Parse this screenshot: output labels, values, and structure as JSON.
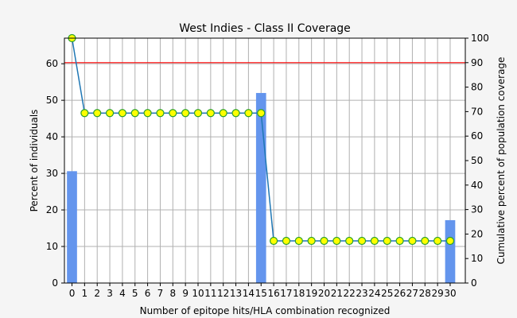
{
  "chart_data": {
    "type": "bar+line",
    "title": "West Indies - Class II Coverage",
    "xlabel": "Number of epitope hits/HLA combination recognized",
    "ylabel": "Percent of individuals",
    "y2label": "Cumulative percent of population coverage",
    "x": [
      0,
      1,
      2,
      3,
      4,
      5,
      6,
      7,
      8,
      9,
      10,
      11,
      12,
      13,
      14,
      15,
      16,
      17,
      18,
      19,
      20,
      21,
      22,
      23,
      24,
      25,
      26,
      27,
      28,
      29,
      30
    ],
    "xlim": [
      -0.6,
      31.2
    ],
    "ylim": [
      0,
      67
    ],
    "y2lim": [
      0,
      100
    ],
    "yticks": [
      0,
      10,
      20,
      30,
      40,
      50,
      60
    ],
    "y2ticks": [
      0,
      10,
      20,
      30,
      40,
      50,
      60,
      70,
      80,
      90,
      100
    ],
    "grid": true,
    "series": [
      {
        "kind": "bar",
        "axis": "left",
        "color": "#6495ed",
        "values": [
          30.6,
          0,
          0,
          0,
          0,
          0,
          0,
          0,
          0,
          0,
          0,
          0,
          0,
          0,
          0,
          52,
          0,
          0,
          0,
          0,
          0,
          0,
          0,
          0,
          0,
          0,
          0,
          0,
          0,
          0,
          17.2
        ]
      },
      {
        "kind": "line",
        "axis": "right",
        "color": "#1f77b4",
        "marker_fill": "#ffff00",
        "marker_edge": "#2ca02c",
        "values": [
          100,
          69.4,
          69.4,
          69.4,
          69.4,
          69.4,
          69.4,
          69.4,
          69.4,
          69.4,
          69.4,
          69.4,
          69.4,
          69.4,
          69.4,
          69.4,
          17.2,
          17.2,
          17.2,
          17.2,
          17.2,
          17.2,
          17.2,
          17.2,
          17.2,
          17.2,
          17.2,
          17.2,
          17.2,
          17.2,
          17.2
        ]
      }
    ],
    "hline": {
      "axis": "right",
      "value": 90,
      "color": "#ff0000"
    }
  }
}
